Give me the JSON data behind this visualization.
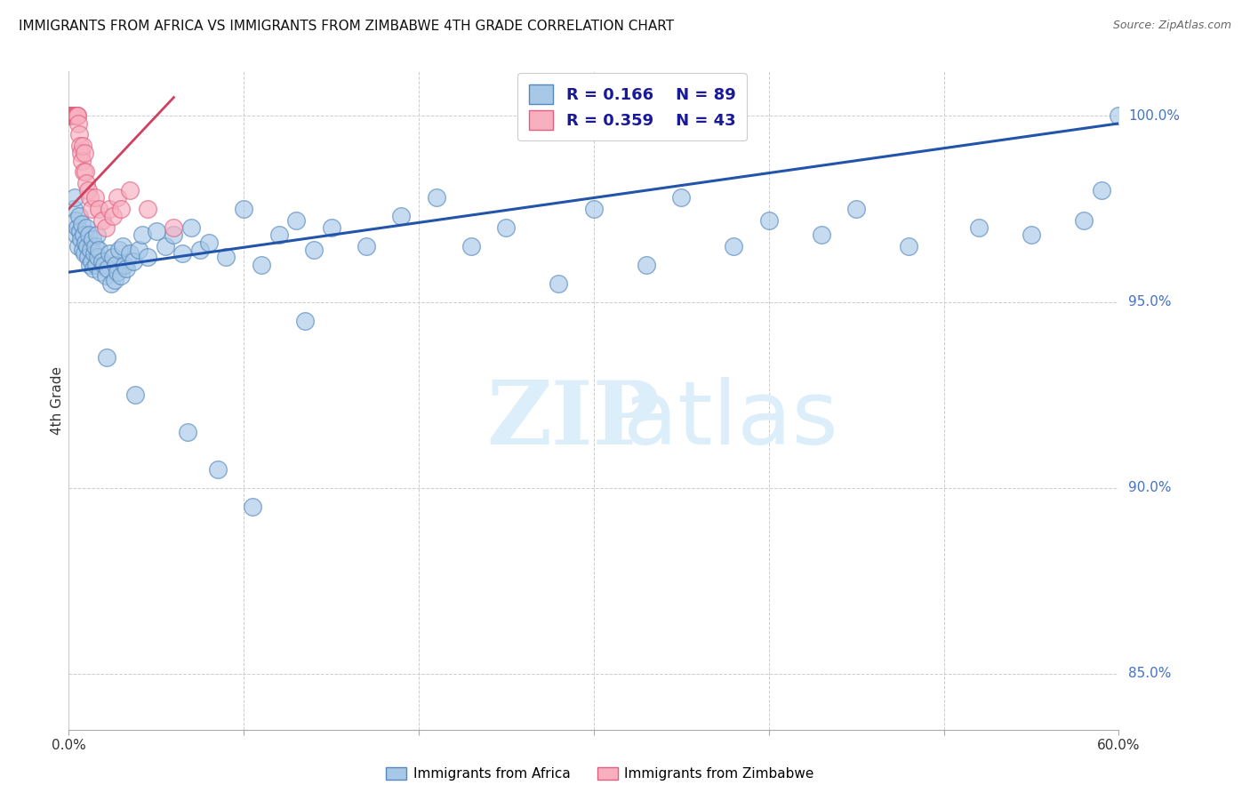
{
  "title": "IMMIGRANTS FROM AFRICA VS IMMIGRANTS FROM ZIMBABWE 4TH GRADE CORRELATION CHART",
  "source": "Source: ZipAtlas.com",
  "ylabel": "4th Grade",
  "x_min": 0.0,
  "x_max": 60.0,
  "y_min": 83.5,
  "y_max": 101.2,
  "y_ticks": [
    85.0,
    90.0,
    95.0,
    100.0
  ],
  "y_tick_labels": [
    "85.0%",
    "90.0%",
    "95.0%",
    "100.0%"
  ],
  "blue_color": "#A8C8E8",
  "pink_color": "#F8B0C0",
  "blue_edge_color": "#5588BB",
  "pink_edge_color": "#E06080",
  "blue_line_color": "#2255AA",
  "pink_line_color": "#D04060",
  "R_blue": 0.166,
  "N_blue": 89,
  "R_pink": 0.359,
  "N_pink": 43,
  "legend_color": "#1a1a99",
  "blue_scatter_x": [
    0.3,
    0.35,
    0.4,
    0.45,
    0.5,
    0.55,
    0.6,
    0.65,
    0.7,
    0.75,
    0.8,
    0.85,
    0.9,
    0.95,
    1.0,
    1.05,
    1.1,
    1.15,
    1.2,
    1.25,
    1.3,
    1.35,
    1.4,
    1.45,
    1.5,
    1.55,
    1.6,
    1.65,
    1.7,
    1.8,
    1.9,
    2.0,
    2.1,
    2.2,
    2.3,
    2.4,
    2.5,
    2.6,
    2.7,
    2.8,
    2.9,
    3.0,
    3.1,
    3.2,
    3.3,
    3.5,
    3.7,
    4.0,
    4.2,
    4.5,
    5.0,
    5.5,
    6.0,
    6.5,
    7.0,
    7.5,
    8.0,
    9.0,
    10.0,
    11.0,
    12.0,
    13.0,
    14.0,
    15.0,
    17.0,
    19.0,
    21.0,
    23.0,
    25.0,
    28.0,
    30.0,
    33.0,
    35.0,
    38.0,
    40.0,
    43.0,
    45.0,
    48.0,
    52.0,
    55.0,
    58.0,
    59.0,
    60.0,
    2.15,
    3.8,
    6.8,
    8.5,
    10.5,
    13.5
  ],
  "blue_scatter_y": [
    97.5,
    97.8,
    97.2,
    96.8,
    97.0,
    96.5,
    97.3,
    96.9,
    96.7,
    97.1,
    96.4,
    96.8,
    96.3,
    96.6,
    97.0,
    96.5,
    96.2,
    96.8,
    96.0,
    96.4,
    96.1,
    96.7,
    95.9,
    96.3,
    96.5,
    96.0,
    96.8,
    96.2,
    96.4,
    95.8,
    96.1,
    96.0,
    95.7,
    95.9,
    96.3,
    95.5,
    96.2,
    95.6,
    96.0,
    95.8,
    96.4,
    95.7,
    96.5,
    96.0,
    95.9,
    96.3,
    96.1,
    96.4,
    96.8,
    96.2,
    96.9,
    96.5,
    96.8,
    96.3,
    97.0,
    96.4,
    96.6,
    96.2,
    97.5,
    96.0,
    96.8,
    97.2,
    96.4,
    97.0,
    96.5,
    97.3,
    97.8,
    96.5,
    97.0,
    95.5,
    97.5,
    96.0,
    97.8,
    96.5,
    97.2,
    96.8,
    97.5,
    96.5,
    97.0,
    96.8,
    97.2,
    98.0,
    100.0,
    93.5,
    92.5,
    91.5,
    90.5,
    89.5,
    94.5
  ],
  "pink_scatter_x": [
    0.05,
    0.08,
    0.1,
    0.12,
    0.15,
    0.18,
    0.2,
    0.22,
    0.25,
    0.28,
    0.3,
    0.32,
    0.35,
    0.38,
    0.4,
    0.42,
    0.45,
    0.48,
    0.5,
    0.55,
    0.6,
    0.65,
    0.7,
    0.75,
    0.8,
    0.85,
    0.9,
    0.95,
    1.0,
    1.1,
    1.2,
    1.3,
    1.5,
    1.7,
    1.9,
    2.1,
    2.3,
    2.5,
    2.8,
    3.0,
    3.5,
    4.5,
    6.0
  ],
  "pink_scatter_y": [
    100.0,
    100.0,
    100.0,
    100.0,
    100.0,
    100.0,
    100.0,
    100.0,
    100.0,
    100.0,
    100.0,
    100.0,
    100.0,
    100.0,
    100.0,
    100.0,
    100.0,
    100.0,
    100.0,
    99.8,
    99.5,
    99.2,
    99.0,
    98.8,
    99.2,
    98.5,
    99.0,
    98.5,
    98.2,
    98.0,
    97.8,
    97.5,
    97.8,
    97.5,
    97.2,
    97.0,
    97.5,
    97.3,
    97.8,
    97.5,
    98.0,
    97.5,
    97.0
  ],
  "blue_line_x0": 0.0,
  "blue_line_x1": 60.0,
  "blue_line_y0": 95.8,
  "blue_line_y1": 99.8,
  "pink_line_x0": 0.0,
  "pink_line_x1": 6.0,
  "pink_line_y0": 97.5,
  "pink_line_y1": 100.5
}
